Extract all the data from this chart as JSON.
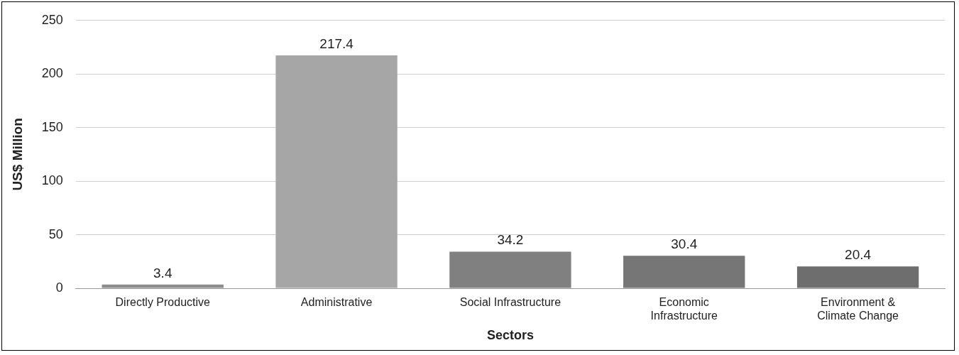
{
  "chart_data": {
    "type": "bar",
    "xlabel": "Sectors",
    "ylabel": "US$ Million",
    "categories": [
      "Directly Productive",
      "Administrative",
      "Social Infrastructure",
      "Economic Infrastructure",
      "Environment & Climate Change"
    ],
    "values": [
      3.4,
      217.4,
      34.2,
      30.4,
      20.4
    ],
    "colors": [
      "#8c8c8c",
      "#a6a6a6",
      "#808080",
      "#767676",
      "#6e6e6e"
    ],
    "ylim": [
      0,
      250
    ],
    "yticks": [
      0,
      50,
      100,
      150,
      200,
      250
    ],
    "grid": "y",
    "legend": false,
    "data_labels": true
  }
}
